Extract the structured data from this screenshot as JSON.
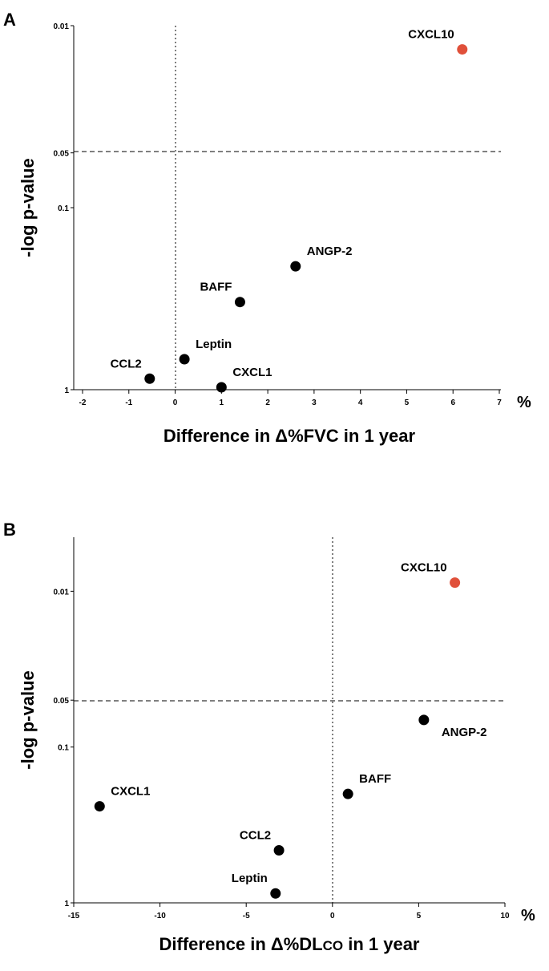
{
  "chart_data": [
    {
      "panel": "A",
      "type": "scatter",
      "xlabel_prefix": "Difference in Δ%",
      "xlabel_main": "FVC",
      "xlabel_suffix": " in 1 year",
      "ylabel": "-log p-value",
      "x_unit": "%",
      "xlim": [
        -2,
        7
      ],
      "x_ticks": [
        -2,
        -1,
        0,
        1,
        2,
        3,
        4,
        5,
        6,
        7
      ],
      "ylim": [
        1,
        0.01
      ],
      "y_scale": "log",
      "y_ticks": [
        0.01,
        0.05,
        0.1,
        1
      ],
      "y_tick_labels": [
        "0.01",
        "0.05",
        "0.1",
        "1"
      ],
      "threshold_p": 0.05,
      "reference_x": 0,
      "points": [
        {
          "label": "CXCL10",
          "x": 6.2,
          "p": 0.0135,
          "color": "#e0503a",
          "label_pos": "upper-left"
        },
        {
          "label": "ANGP-2",
          "x": 2.6,
          "p": 0.21,
          "color": "#000000",
          "label_pos": "upper-right"
        },
        {
          "label": "BAFF",
          "x": 1.4,
          "p": 0.33,
          "color": "#000000",
          "label_pos": "upper-left"
        },
        {
          "label": "Leptin",
          "x": 0.2,
          "p": 0.68,
          "color": "#000000",
          "label_pos": "upper-right"
        },
        {
          "label": "CCL2",
          "x": -0.55,
          "p": 0.87,
          "color": "#000000",
          "label_pos": "upper-left"
        },
        {
          "label": "CXCL1",
          "x": 1.0,
          "p": 0.97,
          "color": "#000000",
          "label_pos": "upper-right"
        }
      ]
    },
    {
      "panel": "B",
      "type": "scatter",
      "xlabel_prefix": "Difference in Δ%",
      "xlabel_main": "DL",
      "xlabel_sub": "CO",
      "xlabel_suffix": " in 1 year",
      "ylabel": "-log p-value",
      "x_unit": "%",
      "xlim": [
        -15,
        10
      ],
      "x_ticks": [
        -15,
        -10,
        -5,
        0,
        5,
        10
      ],
      "ylim": [
        1,
        0.0045
      ],
      "y_scale": "log",
      "y_ticks": [
        0.01,
        0.05,
        0.1,
        1
      ],
      "y_tick_labels": [
        "0.01",
        "0.05",
        "0.1",
        "1"
      ],
      "threshold_p": 0.05,
      "reference_x": 0,
      "points": [
        {
          "label": "CXCL10",
          "x": 7.1,
          "p": 0.0088,
          "color": "#e0503a",
          "label_pos": "upper-left"
        },
        {
          "label": "ANGP-2",
          "x": 5.3,
          "p": 0.067,
          "color": "#000000",
          "label_pos": "lower-right"
        },
        {
          "label": "BAFF",
          "x": 0.9,
          "p": 0.2,
          "color": "#000000",
          "label_pos": "upper-right"
        },
        {
          "label": "CXCL1",
          "x": -13.5,
          "p": 0.24,
          "color": "#000000",
          "label_pos": "upper-right"
        },
        {
          "label": "CCL2",
          "x": -3.1,
          "p": 0.46,
          "color": "#000000",
          "label_pos": "upper-left"
        },
        {
          "label": "Leptin",
          "x": -3.3,
          "p": 0.87,
          "color": "#000000",
          "label_pos": "upper-left"
        }
      ]
    }
  ]
}
